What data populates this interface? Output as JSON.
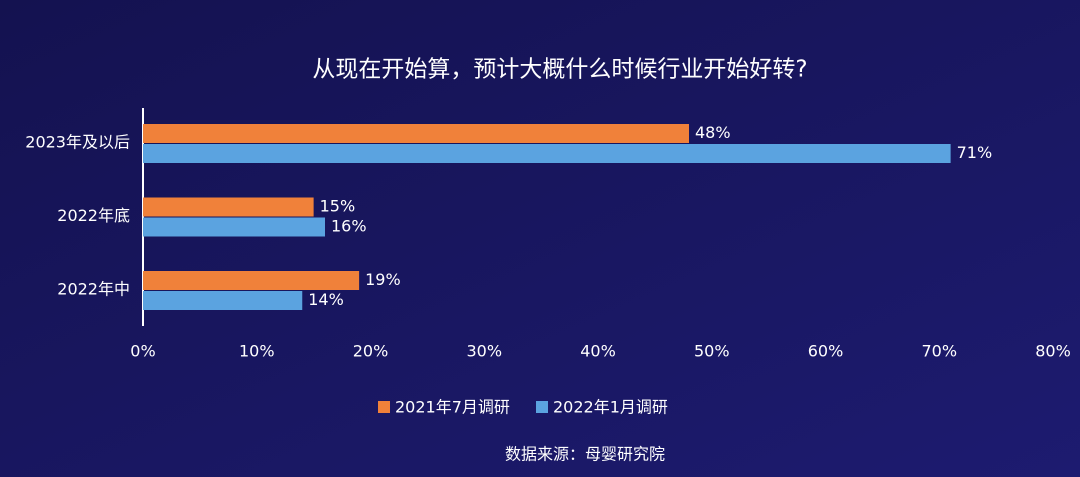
{
  "chart_data": {
    "type": "bar",
    "orientation": "horizontal",
    "title": "从现在开始算，预计大概什么时候行业开始好转?",
    "categories": [
      "2023年及以后",
      "2022年底",
      "2022年中"
    ],
    "series": [
      {
        "name": "2021年7月调研",
        "color": "#f0813a",
        "values": [
          48,
          15,
          19
        ],
        "value_labels": [
          "48%",
          "15%",
          "19%"
        ]
      },
      {
        "name": "2022年1月调研",
        "color": "#5ba3e0",
        "values": [
          71,
          16,
          14
        ],
        "value_labels": [
          "71%",
          "16%",
          "14%"
        ]
      }
    ],
    "xlim": [
      0,
      80
    ],
    "xticks": [
      {
        "value": 0,
        "label": "0%"
      },
      {
        "value": 10,
        "label": "10%"
      },
      {
        "value": 20,
        "label": "20%"
      },
      {
        "value": 30,
        "label": "30%"
      },
      {
        "value": 40,
        "label": "40%"
      },
      {
        "value": 50,
        "label": "50%"
      },
      {
        "value": 60,
        "label": "60%"
      },
      {
        "value": 70,
        "label": "70%"
      },
      {
        "value": 80,
        "label": "80%"
      }
    ],
    "source": "数据来源：母婴研究院",
    "legend": "bottom"
  }
}
